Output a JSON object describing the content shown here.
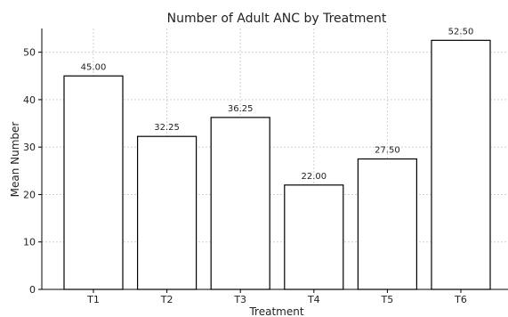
{
  "chart_data": {
    "type": "bar",
    "title": "Number of Adult ANC by Treatment",
    "xlabel": "Treatment",
    "ylabel": "Mean Number",
    "categories": [
      "T1",
      "T2",
      "T3",
      "T4",
      "T5",
      "T6"
    ],
    "values": [
      45.0,
      32.25,
      36.25,
      22.0,
      27.5,
      52.5
    ],
    "data_labels": [
      "45.00",
      "32.25",
      "36.25",
      "22.00",
      "27.50",
      "52.50"
    ],
    "ylim": [
      0,
      55
    ],
    "yticks": [
      0,
      10,
      20,
      30,
      40,
      50
    ],
    "grid": true,
    "legend": "none",
    "bar_fill": "#ffffff",
    "bar_edge": "#000000"
  }
}
